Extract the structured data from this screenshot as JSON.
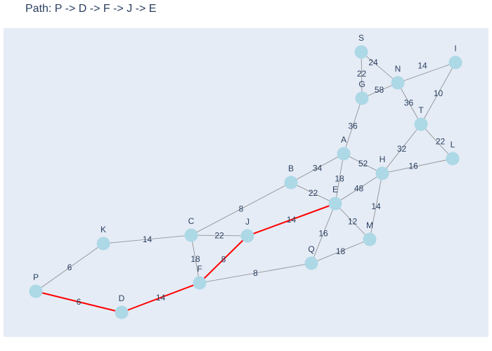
{
  "title": "Path: P -> D -> F -> J -> E",
  "colors": {
    "background": "#e5ecf6",
    "node": "#add8e6",
    "edge": "#888888",
    "highlight_edge": "#ff0000",
    "text": "#2a3f5f"
  },
  "nodes": [
    "S",
    "I",
    "N",
    "G",
    "T",
    "A",
    "L",
    "H",
    "B",
    "E",
    "J",
    "C",
    "K",
    "M",
    "Q",
    "F",
    "P",
    "D"
  ],
  "edges": [
    {
      "from": "S",
      "to": "N",
      "weight": "24"
    },
    {
      "from": "S",
      "to": "G",
      "weight": "22"
    },
    {
      "from": "N",
      "to": "I",
      "weight": "14"
    },
    {
      "from": "G",
      "to": "N",
      "weight": "58"
    },
    {
      "from": "N",
      "to": "T",
      "weight": "36"
    },
    {
      "from": "I",
      "to": "T",
      "weight": "10"
    },
    {
      "from": "G",
      "to": "A",
      "weight": "36"
    },
    {
      "from": "T",
      "to": "H",
      "weight": "32"
    },
    {
      "from": "T",
      "to": "L",
      "weight": "22"
    },
    {
      "from": "A",
      "to": "H",
      "weight": "52"
    },
    {
      "from": "H",
      "to": "L",
      "weight": "16"
    },
    {
      "from": "B",
      "to": "A",
      "weight": "34"
    },
    {
      "from": "A",
      "to": "E",
      "weight": "18"
    },
    {
      "from": "E",
      "to": "H",
      "weight": "48"
    },
    {
      "from": "H",
      "to": "M",
      "weight": "14"
    },
    {
      "from": "B",
      "to": "E",
      "weight": "22"
    },
    {
      "from": "C",
      "to": "B",
      "weight": "8"
    },
    {
      "from": "J",
      "to": "E",
      "weight": "14",
      "highlight": true
    },
    {
      "from": "E",
      "to": "M",
      "weight": "12"
    },
    {
      "from": "E",
      "to": "Q",
      "weight": "16"
    },
    {
      "from": "K",
      "to": "C",
      "weight": "14"
    },
    {
      "from": "C",
      "to": "J",
      "weight": "22"
    },
    {
      "from": "C",
      "to": "F",
      "weight": "18"
    },
    {
      "from": "F",
      "to": "J",
      "weight": "8",
      "highlight": true
    },
    {
      "from": "Q",
      "to": "M",
      "weight": "18"
    },
    {
      "from": "F",
      "to": "Q",
      "weight": "8"
    },
    {
      "from": "P",
      "to": "K",
      "weight": "6"
    },
    {
      "from": "P",
      "to": "D",
      "weight": "6",
      "highlight": true
    },
    {
      "from": "D",
      "to": "F",
      "weight": "14",
      "highlight": true
    }
  ]
}
